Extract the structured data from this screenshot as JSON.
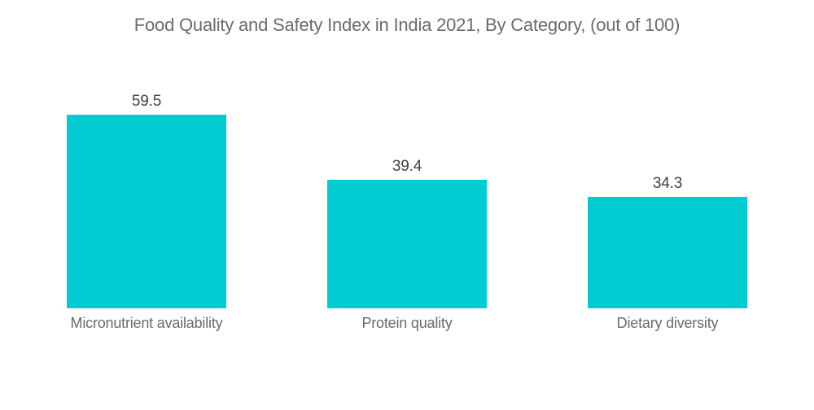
{
  "title": "Food Quality and Safety Index in India 2021, By Category, (out of 100)",
  "chart_data": {
    "type": "bar",
    "title": "Food Quality and Safety Index in India 2021, By Category, (out of 100)",
    "categories": [
      "Micronutrient availability",
      "Protein quality",
      "Dietary diversity"
    ],
    "values": [
      59.5,
      39.4,
      34.3
    ],
    "value_labels": [
      "59.5",
      "39.4",
      "34.3"
    ],
    "xlabel": "",
    "ylabel": "",
    "ylim": [
      0,
      100
    ],
    "grid": false,
    "legend": "none",
    "axes_visible": false,
    "bar_color": "#00CBD1",
    "title_color": "#6B6B6B",
    "value_label_color": "#414141",
    "category_label_color": "#6B6B6B",
    "background_color": "#FFFFFF"
  }
}
